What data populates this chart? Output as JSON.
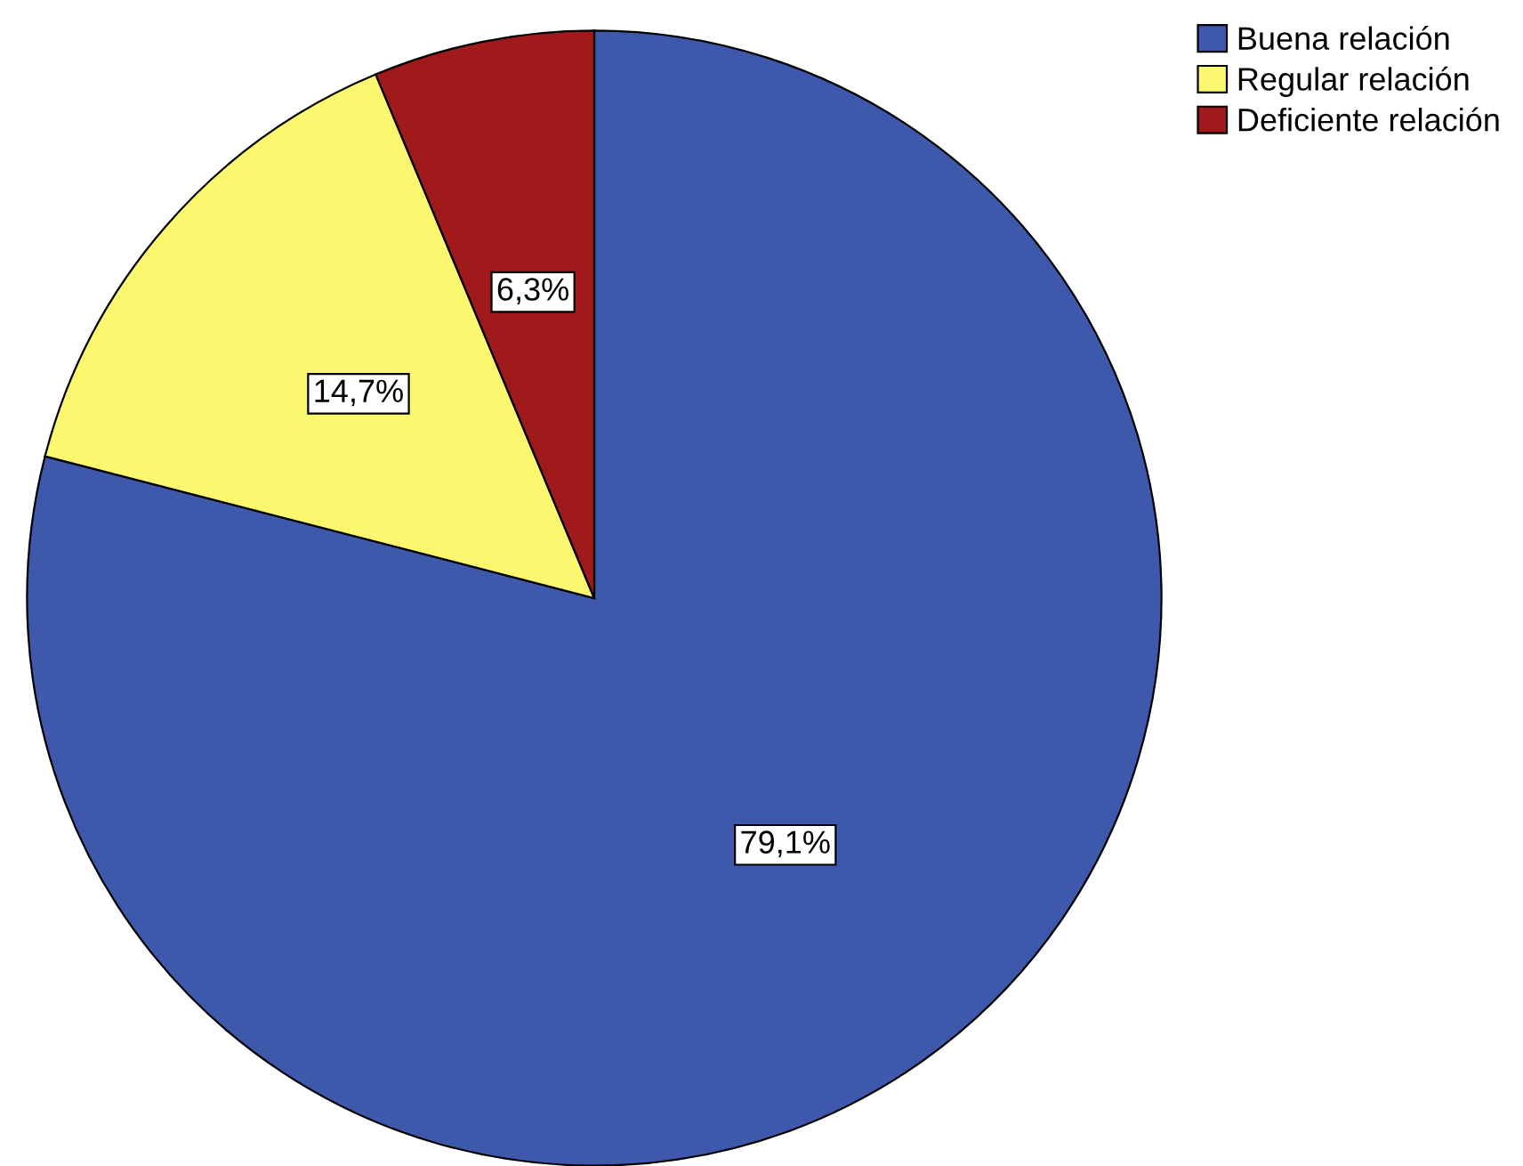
{
  "chart_data": {
    "type": "pie",
    "categories": [
      "Buena relación",
      "Regular relación",
      "Deficiente relación"
    ],
    "values": [
      79.1,
      14.7,
      6.3
    ],
    "colors": [
      "#3e58ac",
      "#fbf870",
      "#a0191b"
    ],
    "value_labels": [
      "79,1%",
      "14,7%",
      "6,3%"
    ],
    "legend": "top right"
  }
}
